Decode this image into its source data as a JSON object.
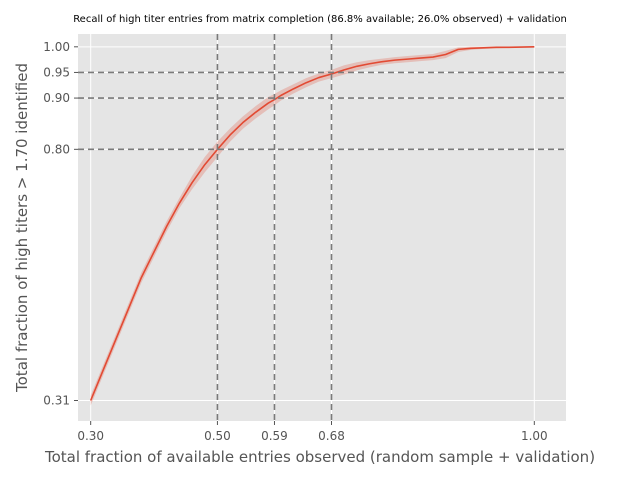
{
  "chart_data": {
    "type": "line",
    "title": "Recall of high titer entries from matrix completion (86.8% available; 26.0% observed) + validation",
    "xlabel": "Total fraction of available entries observed (random sample + validation)",
    "ylabel": "Total fraction of high titers > 1.70 identified",
    "xlim": [
      0.28,
      1.05
    ],
    "ylim": [
      0.27,
      1.025
    ],
    "grid": true,
    "x_ticks": [
      {
        "value": 0.3,
        "label": "0.30"
      },
      {
        "value": 0.5,
        "label": "0.50"
      },
      {
        "value": 0.59,
        "label": "0.59"
      },
      {
        "value": 0.68,
        "label": "0.68"
      },
      {
        "value": 1.0,
        "label": "1.00"
      }
    ],
    "y_ticks": [
      {
        "value": 0.31,
        "label": "0.31"
      },
      {
        "value": 0.8,
        "label": "0.80"
      },
      {
        "value": 0.9,
        "label": "0.90"
      },
      {
        "value": 0.95,
        "label": "0.95"
      },
      {
        "value": 1.0,
        "label": "1.00"
      }
    ],
    "reference_lines": {
      "vertical": [
        0.5,
        0.59,
        0.68
      ],
      "horizontal": [
        0.8,
        0.9,
        0.95
      ]
    },
    "colors": {
      "background": "#e5e5e5",
      "grid": "#ffffff",
      "line": "#e24a33",
      "band": "#e24a33",
      "reference": "#7a7a7a"
    },
    "series": [
      {
        "x": [
          0.3,
          0.32,
          0.34,
          0.36,
          0.38,
          0.4,
          0.42,
          0.44,
          0.46,
          0.48,
          0.5,
          0.52,
          0.54,
          0.56,
          0.58,
          0.59,
          0.6,
          0.62,
          0.64,
          0.66,
          0.68,
          0.7,
          0.72,
          0.74,
          0.76,
          0.78,
          0.8,
          0.82,
          0.84,
          0.86,
          0.88,
          0.9,
          0.92,
          0.94,
          0.96,
          0.98,
          1.0
        ],
        "y": [
          0.31,
          0.37,
          0.43,
          0.49,
          0.55,
          0.6,
          0.65,
          0.695,
          0.735,
          0.77,
          0.8,
          0.828,
          0.852,
          0.872,
          0.89,
          0.897,
          0.905,
          0.918,
          0.93,
          0.94,
          0.947,
          0.955,
          0.962,
          0.967,
          0.971,
          0.974,
          0.976,
          0.978,
          0.98,
          0.985,
          0.995,
          0.997,
          0.998,
          0.999,
          0.999,
          0.9995,
          1.0
        ],
        "lower": [
          0.3,
          0.36,
          0.42,
          0.48,
          0.54,
          0.59,
          0.64,
          0.685,
          0.722,
          0.755,
          0.785,
          0.815,
          0.84,
          0.86,
          0.878,
          0.886,
          0.895,
          0.909,
          0.921,
          0.932,
          0.939,
          0.946,
          0.954,
          0.96,
          0.965,
          0.968,
          0.97,
          0.972,
          0.974,
          0.978,
          0.99,
          0.994,
          0.996,
          0.997,
          0.998,
          0.999,
          1.0
        ],
        "upper": [
          0.32,
          0.38,
          0.44,
          0.5,
          0.56,
          0.61,
          0.66,
          0.705,
          0.748,
          0.785,
          0.815,
          0.841,
          0.864,
          0.884,
          0.902,
          0.908,
          0.915,
          0.927,
          0.939,
          0.948,
          0.955,
          0.964,
          0.97,
          0.974,
          0.977,
          0.98,
          0.982,
          0.984,
          0.986,
          0.992,
          0.999,
          1.0,
          1.0,
          1.0,
          1.0,
          1.0,
          1.0
        ]
      }
    ]
  }
}
